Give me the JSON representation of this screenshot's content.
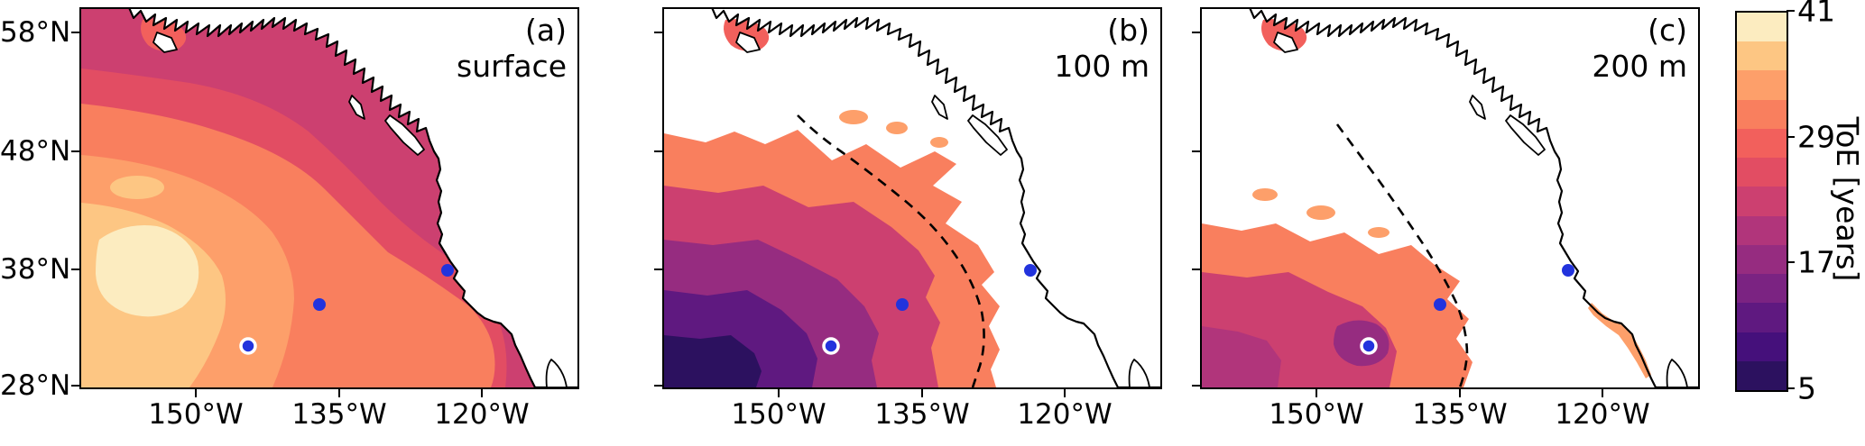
{
  "figure": {
    "y_ticks": [
      "58°N",
      "48°N",
      "38°N",
      "28°N"
    ],
    "x_ticks": [
      "150°W",
      "135°W",
      "120°W"
    ],
    "panels": [
      {
        "label": "(a)",
        "depth": "surface"
      },
      {
        "label": "(b)",
        "depth": "100 m"
      },
      {
        "label": "(c)",
        "depth": "200 m"
      }
    ],
    "colorbar": {
      "label": "ToE [years]",
      "tick_labels": [
        "41",
        "29",
        "17",
        "5"
      ],
      "min": 5,
      "max": 41,
      "colors": [
        "#2c115f",
        "#45107b",
        "#5f1980",
        "#7b2382",
        "#962c80",
        "#b1357b",
        "#cc4070",
        "#e24d63",
        "#f2605c",
        "#f97f5e",
        "#fd9f6a",
        "#fdc683",
        "#fcecc0"
      ]
    },
    "station_color": "#2233dd",
    "coast_color": "#000000",
    "dashed_contour_color": "#000000"
  },
  "chart_data": {
    "type": "heatmap",
    "variant": "three filled-contour maps of the Northeast Pacific sharing one colorbar",
    "colorbar": {
      "label": "ToE [years]",
      "ticks": [
        5,
        17,
        29,
        41
      ],
      "range": [
        5,
        41
      ],
      "colormap": "magma-like: dark purple at 5 years up to cream at 41 years"
    },
    "x_axis": {
      "ticks": [
        "150°W",
        "135°W",
        "120°W"
      ],
      "approx_range": [
        "162°W",
        "110°W"
      ]
    },
    "y_axis": {
      "ticks": [
        "58°N",
        "48°N",
        "38°N",
        "28°N"
      ],
      "approx_range": [
        "28°N",
        "60°N"
      ]
    },
    "panels": [
      {
        "label": "(a)",
        "depth": "surface",
        "coverage": "emergence over essentially the whole open ocean west of the coastline",
        "values": "ToE ≈ 17–24 yr (dark rose) along the coast, in the north and Gulf of Alaska; 24–32 yr (orange) over the central/southern basin; 32–41 yr (light orange to cream) in the southwest, lightest patch near 150°W, 33°N"
      },
      {
        "label": "(b)",
        "depth": "100 m",
        "coverage": "emergence only southwest of the black dashed contour; white elsewhere",
        "values": "ToE ≈ 5–14 yr (darkest purple) in the far southwest corner, 14–23 yr (magenta/rose) in the interior, 23–35 yr (orange) fringe reaching ~48°N near 152°W with scattered orange patches"
      },
      {
        "label": "(c)",
        "depth": "200 m",
        "coverage": "emergence only in the far southwest corner plus a narrow strip along the California/Baja coast; white elsewhere",
        "values": "mostly ToE ≈ 23–35 yr (orange/rose) below ~42°N west of ~135°W; small 14–20 yr (magenta) pocket near 143°W, 31°N; thin 29–38 yr coastal strip near Baja"
      }
    ],
    "stations": [
      {
        "approx_lon": "123°W",
        "approx_lat": "37.8°N",
        "marker": "blue filled circle (repeated in all panels)"
      },
      {
        "approx_lon": "137°W",
        "approx_lat": "35°N",
        "marker": "blue filled circle (repeated in all panels)"
      },
      {
        "approx_lon": "144.5°W",
        "approx_lat": "31.5°N",
        "marker": "blue filled circle with white edge (repeated in all panels)"
      }
    ],
    "dashed_line": "black dashed contour in panels (b) and (c) marking the boundary of the emergence region"
  }
}
